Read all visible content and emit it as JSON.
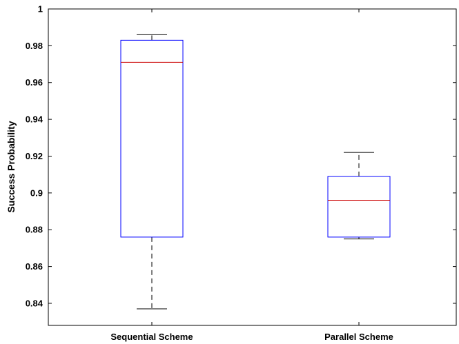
{
  "chart_data": {
    "type": "boxplot",
    "ylabel": "Success Probability",
    "xlabel": "",
    "ylim": [
      0.828,
      1.0
    ],
    "yticks": [
      0.84,
      0.86,
      0.88,
      0.9,
      0.92,
      0.94,
      0.96,
      0.98,
      1
    ],
    "ytick_labels": [
      "0.84",
      "0.86",
      "0.88",
      "0.9",
      "0.92",
      "0.94",
      "0.96",
      "0.98",
      "1"
    ],
    "categories": [
      "Sequential Scheme",
      "Parallel Scheme"
    ],
    "boxes": [
      {
        "category": "Sequential Scheme",
        "whisker_low": 0.837,
        "q1": 0.876,
        "median": 0.971,
        "q3": 0.983,
        "whisker_high": 0.986
      },
      {
        "category": "Parallel Scheme",
        "whisker_low": 0.875,
        "q1": 0.876,
        "median": 0.896,
        "q3": 0.909,
        "whisker_high": 0.922
      }
    ],
    "colors": {
      "box": "#0000ff",
      "median": "#cc0000",
      "whisker": "#000000",
      "axis": "#000000"
    },
    "grid": false
  }
}
